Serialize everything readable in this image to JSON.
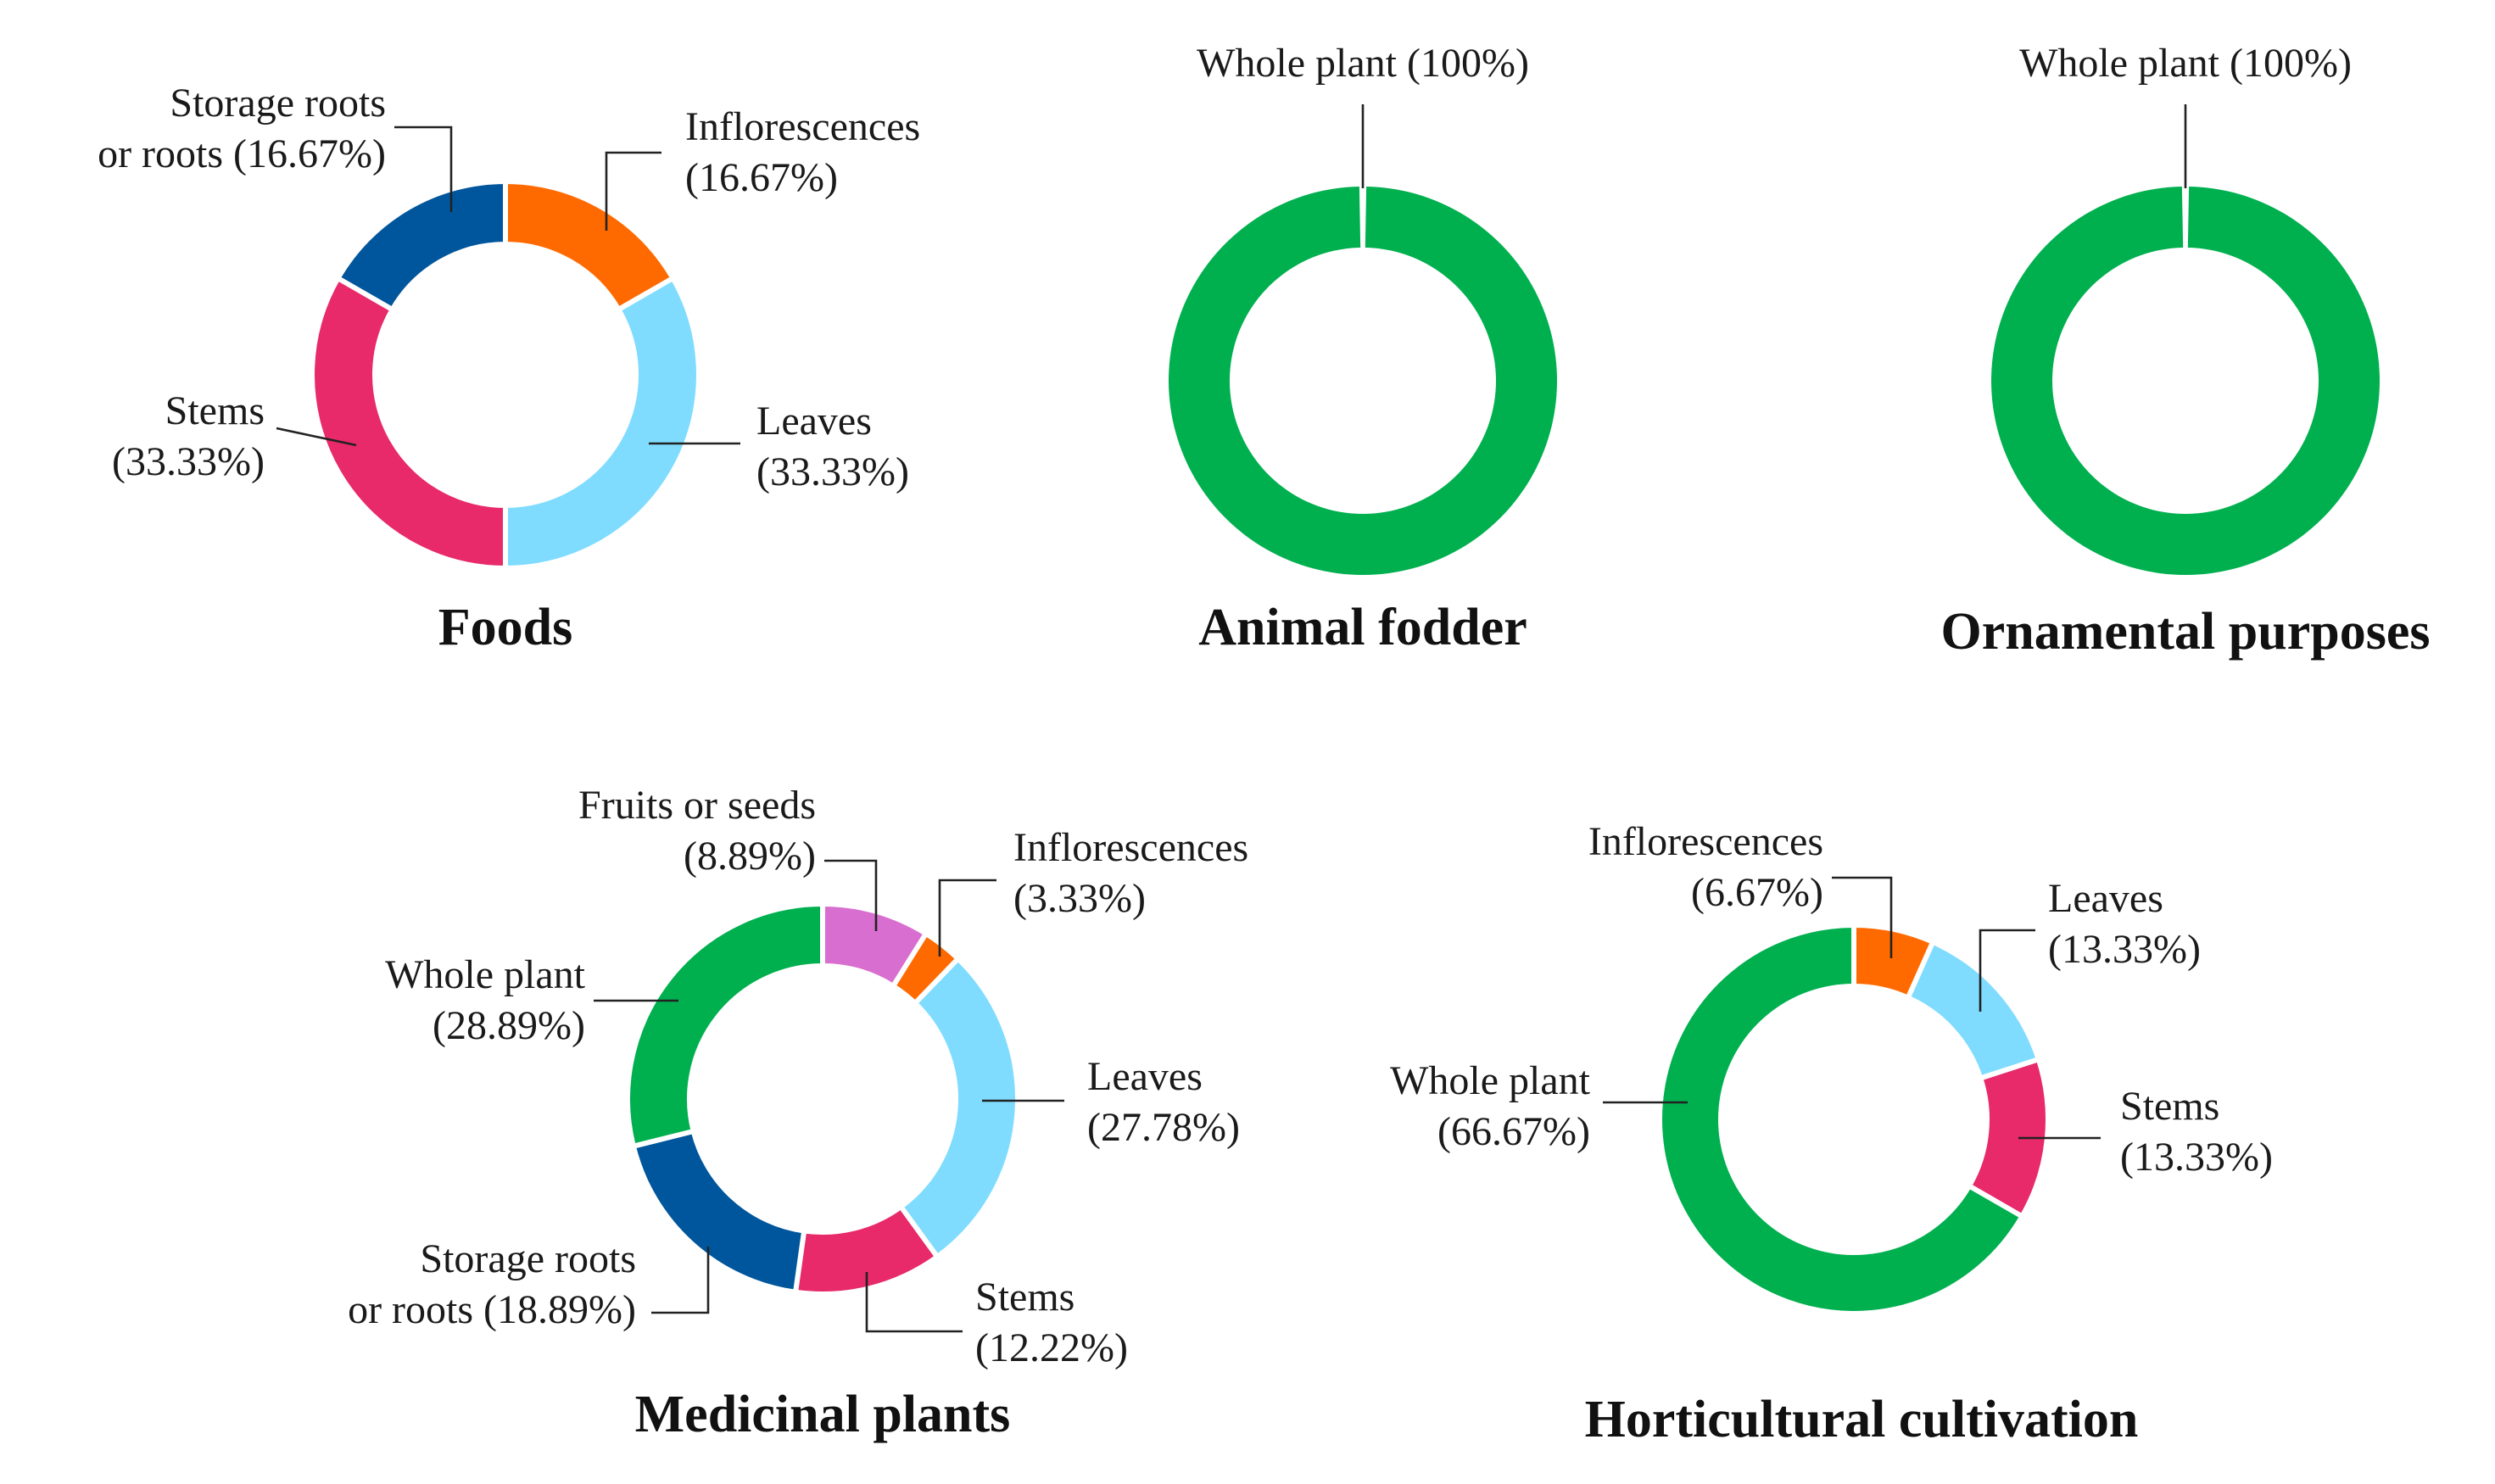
{
  "figure": {
    "description_free": true
  },
  "chart_data": [
    {
      "type": "pie",
      "variant": "donut",
      "title": "Foods",
      "slices": [
        {
          "label": "Inflorescences",
          "value": 16.67,
          "display": "(16.67%)",
          "color": "#ff6a00"
        },
        {
          "label": "Leaves",
          "value": 33.33,
          "display": "(33.33%)",
          "color": "#7fdcff"
        },
        {
          "label": "Stems",
          "value": 33.33,
          "display": "(33.33%)",
          "color": "#e8296a"
        },
        {
          "label": "Storage roots or roots",
          "value": 16.67,
          "display": "(16.67%)",
          "color": "#00569c"
        }
      ],
      "text_lines": {
        "Inflorescences": [
          "Inflorescences",
          "(16.67%)"
        ],
        "Leaves": [
          "Leaves",
          "(33.33%)"
        ],
        "Stems": [
          "Stems",
          "(33.33%)"
        ],
        "Storage roots or roots": [
          "Storage roots",
          "or roots (16.67%)"
        ]
      }
    },
    {
      "type": "pie",
      "variant": "donut",
      "title": "Animal fodder",
      "slices": [
        {
          "label": "Whole plant",
          "value": 100,
          "display": "(100%)",
          "color": "#00b04f"
        }
      ],
      "text_lines": {
        "Whole plant": [
          "Whole plant (100%)"
        ]
      }
    },
    {
      "type": "pie",
      "variant": "donut",
      "title": "Ornamental purposes",
      "slices": [
        {
          "label": "Whole plant",
          "value": 100,
          "display": "(100%)",
          "color": "#00b04f"
        }
      ],
      "text_lines": {
        "Whole plant": [
          "Whole plant (100%)"
        ]
      }
    },
    {
      "type": "pie",
      "variant": "donut",
      "title": "Medicinal plants",
      "slices": [
        {
          "label": "Fruits or seeds",
          "value": 8.89,
          "display": "(8.89%)",
          "color": "#d86fd0"
        },
        {
          "label": "Inflorescences",
          "value": 3.33,
          "display": "(3.33%)",
          "color": "#ff6a00"
        },
        {
          "label": "Leaves",
          "value": 27.78,
          "display": "(27.78%)",
          "color": "#7fdcff"
        },
        {
          "label": "Stems",
          "value": 12.22,
          "display": "(12.22%)",
          "color": "#e8296a"
        },
        {
          "label": "Storage roots or roots",
          "value": 18.89,
          "display": "(18.89%)",
          "color": "#00569c"
        },
        {
          "label": "Whole plant",
          "value": 28.89,
          "display": "(28.89%)",
          "color": "#00b04f"
        }
      ],
      "text_lines": {
        "Fruits or seeds": [
          "Fruits or seeds",
          "(8.89%)"
        ],
        "Inflorescences": [
          "Inflorescences",
          "(3.33%)"
        ],
        "Leaves": [
          "Leaves",
          "(27.78%)"
        ],
        "Stems": [
          "Stems",
          "(12.22%)"
        ],
        "Storage roots or roots": [
          "Storage roots",
          "or roots (18.89%)"
        ],
        "Whole plant": [
          "Whole plant",
          "(28.89%)"
        ]
      }
    },
    {
      "type": "pie",
      "variant": "donut",
      "title": "Horticultural cultivation",
      "slices": [
        {
          "label": "Inflorescences",
          "value": 6.67,
          "display": "(6.67%)",
          "color": "#ff6a00"
        },
        {
          "label": "Leaves",
          "value": 13.33,
          "display": "(13.33%)",
          "color": "#7fdcff"
        },
        {
          "label": "Stems",
          "value": 13.33,
          "display": "(13.33%)",
          "color": "#e8296a"
        },
        {
          "label": "Whole plant",
          "value": 66.67,
          "display": "(66.67%)",
          "color": "#00b04f"
        }
      ],
      "text_lines": {
        "Inflorescences": [
          "Inflorescences",
          "(6.67%)"
        ],
        "Leaves": [
          "Leaves",
          "(13.33%)"
        ],
        "Stems": [
          "Stems",
          "(13.33%)"
        ],
        "Whole plant": [
          "Whole plant",
          "(66.67%)"
        ]
      }
    }
  ]
}
